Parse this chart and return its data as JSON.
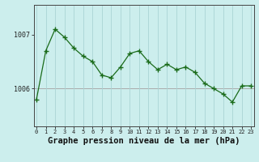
{
  "hours": [
    0,
    1,
    2,
    3,
    4,
    5,
    6,
    7,
    8,
    9,
    10,
    11,
    12,
    13,
    14,
    15,
    16,
    17,
    18,
    19,
    20,
    21,
    22,
    23
  ],
  "pressure": [
    1005.8,
    1006.7,
    1007.1,
    1006.95,
    1006.75,
    1006.6,
    1006.5,
    1006.25,
    1006.2,
    1006.4,
    1006.65,
    1006.7,
    1006.5,
    1006.35,
    1006.45,
    1006.35,
    1006.4,
    1006.3,
    1006.1,
    1006.0,
    1005.9,
    1005.75,
    1006.05,
    1006.05
  ],
  "line_color": "#1a6b1a",
  "marker": "+",
  "marker_size": 4,
  "marker_lw": 1.0,
  "bg_color": "#cceeed",
  "plot_bg_color": "#cceeed",
  "grid_color": "#aad4d4",
  "xlabel": "Graphe pression niveau de la mer (hPa)",
  "xlabel_fontsize": 7.5,
  "ylim": [
    1005.3,
    1007.55
  ],
  "yticks": [
    1006.0,
    1007.0
  ],
  "ytick_labels": [
    "1006",
    "1007"
  ],
  "hline_y": 1006.0,
  "hline_color": "#aaaaaa",
  "line_width": 0.9
}
